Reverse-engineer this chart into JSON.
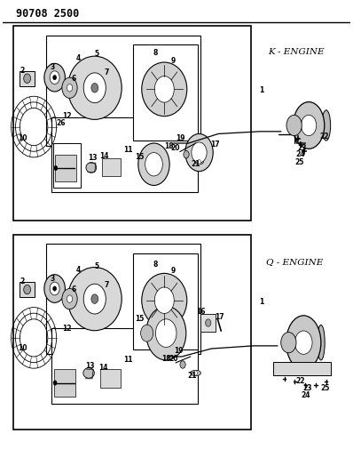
{
  "title": "90708 2500",
  "bg_color": "#ffffff",
  "k_engine_label": "K - ENGINE",
  "q_engine_label": "Q - ENGINE"
}
